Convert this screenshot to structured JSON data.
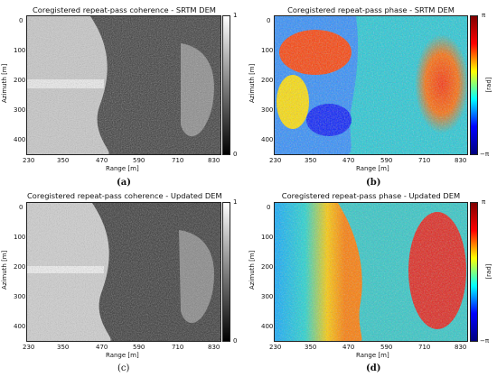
{
  "panels": [
    {
      "id": "a",
      "title": "Coregistered repeat-pass coherence - SRTM DEM",
      "caption": "(a)",
      "xlabel": "Range [m]",
      "ylabel": "Azimuth [m]",
      "xticks": [
        "230",
        "350",
        "470",
        "590",
        "710",
        "830"
      ],
      "yticks": [
        "0",
        "100",
        "200",
        "300",
        "400"
      ],
      "colorbar_ticks": [
        "1",
        "0"
      ],
      "colorbar_label": "",
      "colormap": "gray",
      "colors": [
        "#ffffff",
        "#000000"
      ]
    },
    {
      "id": "b",
      "title": "Coregistered repeat-pass phase - SRTM DEM",
      "caption": "(b)",
      "xlabel": "Range [m]",
      "ylabel": "Azimuth [m]",
      "xticks": [
        "230",
        "350",
        "470",
        "590",
        "710",
        "830"
      ],
      "yticks": [
        "0",
        "100",
        "200",
        "300",
        "400"
      ],
      "colorbar_ticks": [
        "π",
        "−π"
      ],
      "colorbar_label": "[rad]",
      "colormap": "jet",
      "colors": [
        "#7f0000",
        "#ff0000",
        "#ffff00",
        "#00ffff",
        "#0000ff",
        "#00007f"
      ]
    },
    {
      "id": "c",
      "title": "Coregistered repeat-pass coherence - Updated DEM",
      "caption": "(c)",
      "xlabel": "Range [m]",
      "ylabel": "Azimuth [m]",
      "xticks": [
        "230",
        "350",
        "470",
        "590",
        "710",
        "830"
      ],
      "yticks": [
        "0",
        "100",
        "200",
        "300",
        "400"
      ],
      "colorbar_ticks": [
        "1",
        "0"
      ],
      "colorbar_label": "",
      "colormap": "gray",
      "colors": [
        "#ffffff",
        "#000000"
      ]
    },
    {
      "id": "d",
      "title": "Coregistered repeat-pass phase - Updated DEM",
      "caption": "(d)",
      "xlabel": "Range [m]",
      "ylabel": "Azimuth [m]",
      "xticks": [
        "230",
        "350",
        "470",
        "590",
        "710",
        "830"
      ],
      "yticks": [
        "0",
        "100",
        "200",
        "300",
        "400"
      ],
      "colorbar_ticks": [
        "π",
        "−π"
      ],
      "colorbar_label": "[rad]",
      "colormap": "jet",
      "colors": [
        "#7f0000",
        "#ff0000",
        "#ffff00",
        "#00ffff",
        "#0000ff",
        "#00007f"
      ]
    }
  ]
}
